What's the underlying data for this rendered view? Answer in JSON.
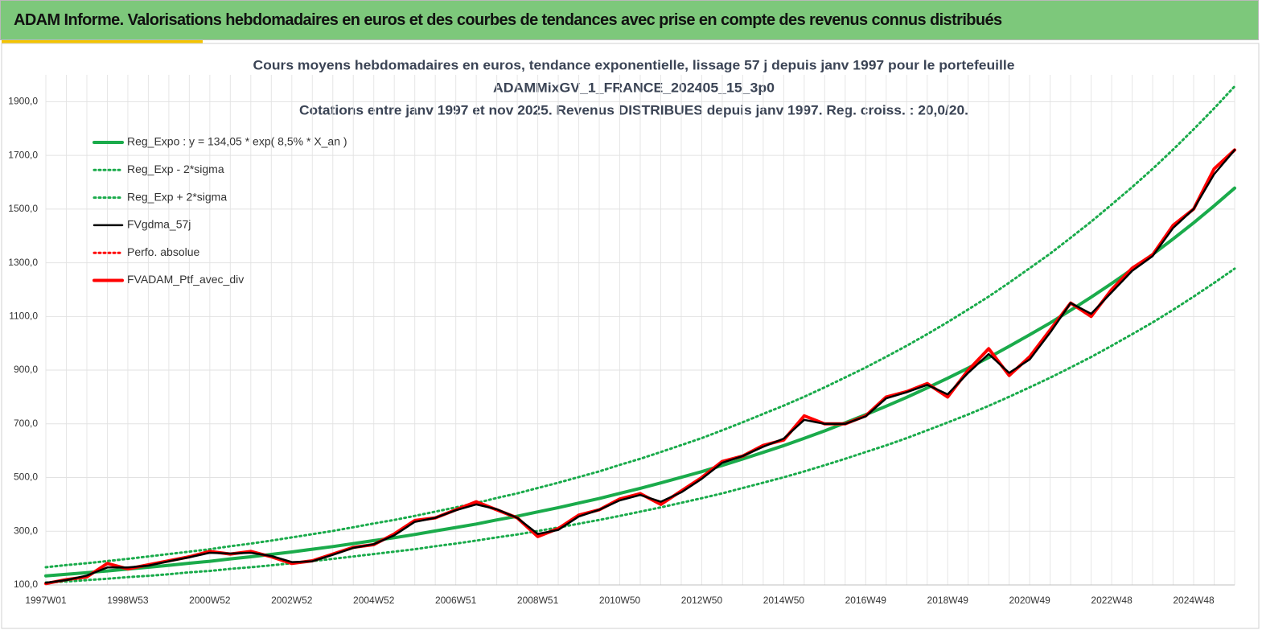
{
  "header": {
    "title": "ADAM Informe. Valorisations hebdomadaires en euros et des courbes de tendances avec prise en compte des revenus connus distribués"
  },
  "chart_data": {
    "type": "line",
    "title": [
      "Cours moyens hebdomadaires  en euros, tendance exponentielle, lissage 57 j depuis janv 1997 pour le portefeuille",
      "ADAMMixGV_1_FRANCE_202405_15_3p0",
      "Cotations  entre janv 1997 et nov 2025. Revenus DISTRIBUES depuis janv 1997. Reg. croiss. : 20,0/20."
    ],
    "categories": [
      "1997W01",
      null,
      null,
      null,
      "1998W53",
      null,
      null,
      null,
      "2000W52",
      null,
      null,
      null,
      "2002W52",
      null,
      null,
      null,
      "2004W52",
      null,
      null,
      null,
      "2006W51",
      null,
      null,
      null,
      "2008W51",
      null,
      null,
      null,
      "2010W50",
      null,
      null,
      null,
      "2012W50",
      null,
      null,
      null,
      "2014W50",
      null,
      null,
      null,
      "2016W49",
      null,
      null,
      null,
      "2018W49",
      null,
      null,
      null,
      "2020W49",
      null,
      null,
      null,
      "2022W48",
      null,
      null,
      null,
      "2024W48",
      null,
      null
    ],
    "ylim": [
      100,
      2000
    ],
    "yticks": [
      {
        "value": 100,
        "label": "100,0"
      },
      {
        "value": 300,
        "label": "300,0"
      },
      {
        "value": 500,
        "label": "500,0"
      },
      {
        "value": 700,
        "label": "700,0"
      },
      {
        "value": 900,
        "label": "900,0"
      },
      {
        "value": 1100,
        "label": "1100,0"
      },
      {
        "value": 1300,
        "label": "1300,0"
      },
      {
        "value": 1500,
        "label": "1500,0"
      },
      {
        "value": 1700,
        "label": "1700,0"
      },
      {
        "value": 1900,
        "label": "1900,0"
      }
    ],
    "grid": true,
    "legend": "top-left",
    "series": [
      {
        "name": "Reg_Expo : y = 134,05 * exp( 8,5% *  X_an )",
        "color": "#1aab4b",
        "style": "solid",
        "values": [
          134,
          140,
          146,
          152,
          159,
          166,
          173,
          181,
          188,
          197,
          205,
          214,
          223,
          233,
          243,
          254,
          265,
          276,
          288,
          301,
          314,
          327,
          342,
          356,
          372,
          388,
          405,
          422,
          441,
          460,
          480,
          501,
          522,
          545,
          569,
          594,
          619,
          646,
          674,
          704,
          734,
          766,
          799,
          834,
          870,
          908,
          947,
          989,
          1032,
          1076,
          1123,
          1172,
          1223,
          1276,
          1331,
          1389,
          1449,
          1512,
          1578
        ]
      },
      {
        "name": "Reg_Exp - 2*sigma",
        "color": "#1aab4b",
        "style": "dotted",
        "values": [
          109,
          113,
          118,
          123,
          129,
          134,
          140,
          147,
          152,
          160,
          166,
          173,
          181,
          189,
          197,
          206,
          215,
          224,
          233,
          244,
          254,
          265,
          277,
          288,
          301,
          314,
          328,
          342,
          357,
          373,
          389,
          406,
          423,
          441,
          461,
          481,
          501,
          523,
          546,
          570,
          595,
          620,
          647,
          676,
          705,
          735,
          767,
          801,
          836,
          872,
          910,
          949,
          991,
          1034,
          1078,
          1125,
          1174,
          1225,
          1278
        ]
      },
      {
        "name": "Reg_Exp + 2*sigma",
        "color": "#1aab4b",
        "style": "dotted",
        "values": [
          166,
          174,
          181,
          189,
          197,
          206,
          215,
          224,
          233,
          244,
          254,
          265,
          277,
          289,
          301,
          315,
          329,
          342,
          357,
          373,
          389,
          405,
          424,
          441,
          461,
          481,
          502,
          523,
          547,
          570,
          595,
          621,
          647,
          676,
          706,
          737,
          768,
          801,
          836,
          873,
          910,
          950,
          991,
          1034,
          1079,
          1126,
          1174,
          1226,
          1280,
          1334,
          1393,
          1453,
          1517,
          1582,
          1650,
          1722,
          1797,
          1875,
          1957
        ]
      },
      {
        "name": "FVgdma_57j",
        "color": "#000000",
        "style": "solid",
        "values": [
          108,
          118,
          135,
          165,
          165,
          172,
          188,
          203,
          220,
          217,
          220,
          208,
          185,
          188,
          212,
          238,
          252,
          285,
          335,
          350,
          378,
          400,
          382,
          350,
          290,
          305,
          355,
          380,
          415,
          435,
          410,
          445,
          495,
          555,
          580,
          615,
          645,
          715,
          700,
          700,
          728,
          795,
          818,
          845,
          810,
          890,
          960,
          890,
          940,
          1040,
          1150,
          1110,
          1190,
          1270,
          1325,
          1430,
          1500,
          1630,
          1720
        ]
      },
      {
        "name": "Perfo. absolue",
        "color": "#ff0000",
        "style": "dotted",
        "values": [
          105,
          120,
          130,
          180,
          160,
          175,
          190,
          205,
          225,
          215,
          225,
          205,
          180,
          190,
          215,
          240,
          250,
          290,
          340,
          350,
          380,
          410,
          380,
          350,
          280,
          310,
          360,
          380,
          420,
          440,
          400,
          450,
          500,
          560,
          580,
          620,
          640,
          730,
          700,
          700,
          730,
          800,
          820,
          850,
          800,
          900,
          980,
          880,
          950,
          1050,
          1150,
          1100,
          1200,
          1280,
          1330,
          1440,
          1500,
          1650,
          1720
        ]
      },
      {
        "name": "FVADAM_Ptf_avec_div",
        "color": "#ff0000",
        "style": "solid",
        "values": [
          105,
          120,
          130,
          180,
          160,
          175,
          190,
          205,
          225,
          215,
          225,
          205,
          180,
          190,
          215,
          240,
          250,
          290,
          340,
          350,
          380,
          410,
          380,
          350,
          280,
          310,
          360,
          380,
          420,
          440,
          400,
          450,
          500,
          560,
          580,
          620,
          640,
          730,
          700,
          700,
          730,
          800,
          820,
          850,
          800,
          900,
          980,
          880,
          950,
          1050,
          1150,
          1100,
          1200,
          1280,
          1330,
          1440,
          1500,
          1650,
          1720
        ]
      }
    ]
  }
}
